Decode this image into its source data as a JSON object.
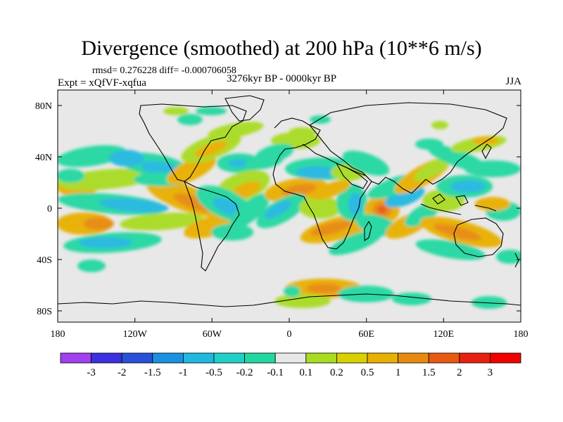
{
  "title": "Divergence (smoothed) at 200 hPa (10**6 m/s)",
  "stats": "rmsd= 0.276228 diff= -0.000706058",
  "experiment": "Expt = xQfVF-xqfua",
  "period": "3276kyr BP - 0000kyr BP",
  "season": "JJA",
  "lat_ticks": [
    "80N",
    "40N",
    "0",
    "40S",
    "80S"
  ],
  "lon_ticks": [
    "180",
    "120W",
    "60W",
    "0",
    "60E",
    "120E",
    "180"
  ],
  "colorbar": {
    "labels": [
      "-3",
      "-2",
      "-1.5",
      "-1",
      "-0.5",
      "-0.2",
      "-0.1",
      "0.1",
      "0.2",
      "0.5",
      "1",
      "1.5",
      "2",
      "3"
    ],
    "colors": [
      "#a040f0",
      "#3c30e0",
      "#2850d8",
      "#1a90e0",
      "#20b8e0",
      "#20d0c8",
      "#20d8a0",
      "#e8e8e8",
      "#a8dc20",
      "#d8d000",
      "#e8b000",
      "#e88a10",
      "#e85a10",
      "#e82010",
      "#f00000"
    ]
  }
}
